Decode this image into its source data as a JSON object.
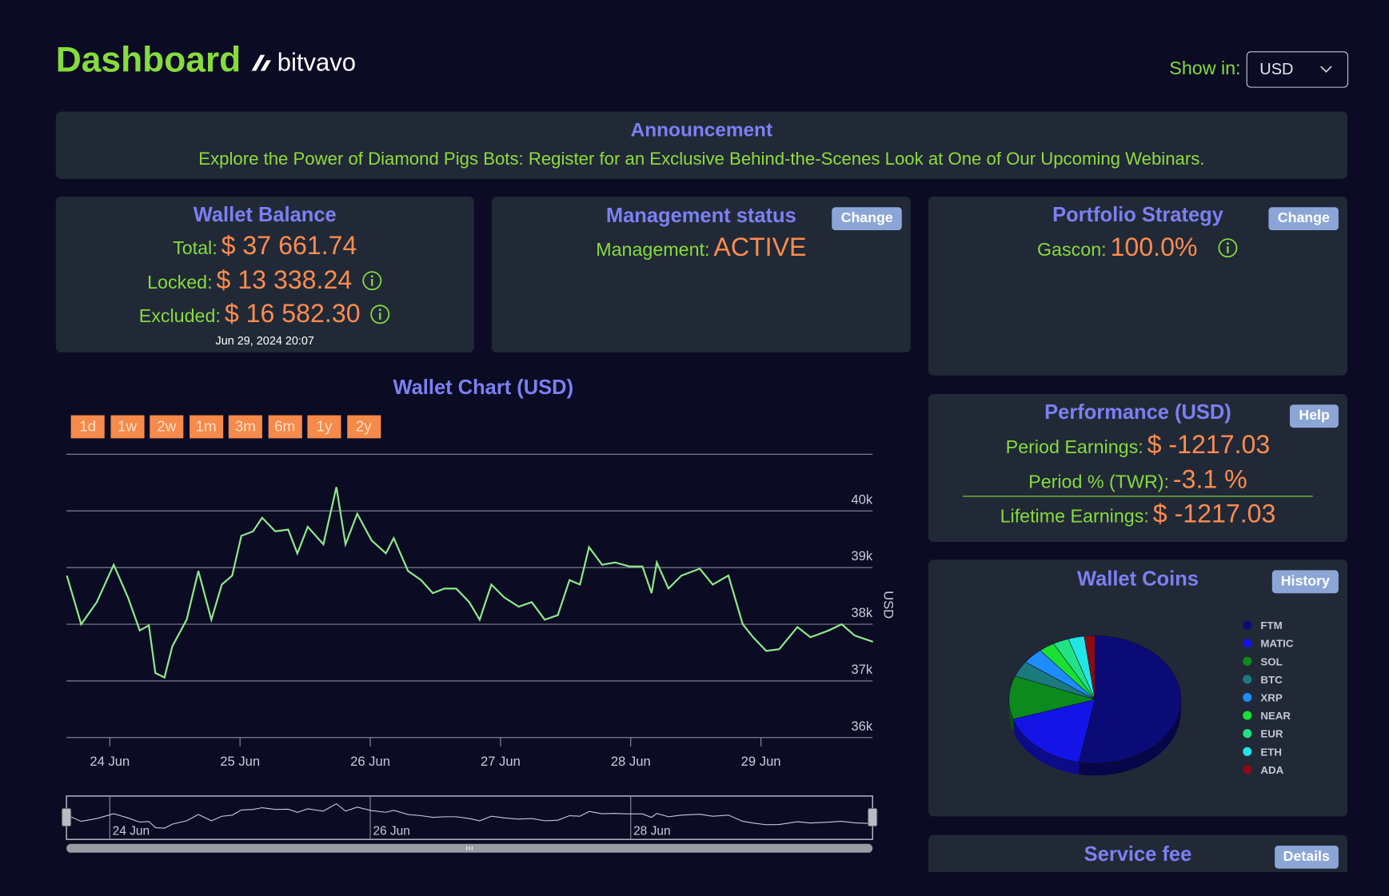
{
  "header": {
    "title": "Dashboard",
    "brand": "bitvavo",
    "show_in_label": "Show in:",
    "currency": "USD"
  },
  "announcement": {
    "title": "Announcement",
    "text": "Explore the Power of Diamond Pigs Bots: Register for an Exclusive Behind-the-Scenes Look at One of Our Upcoming Webinars."
  },
  "wallet_balance": {
    "title": "Wallet Balance",
    "total_label": "Total:",
    "total": "$ 37 661.74",
    "locked_label": "Locked:",
    "locked": "$ 13 338.24",
    "excluded_label": "Excluded:",
    "excluded": "$ 16 582.30",
    "timestamp": "Jun 29, 2024 20:07"
  },
  "management": {
    "title": "Management status",
    "button": "Change",
    "label": "Management:",
    "status": "ACTIVE"
  },
  "strategy": {
    "title": "Portfolio Strategy",
    "button": "Change",
    "label": "Gascon:",
    "value": "100.0%"
  },
  "performance": {
    "title": "Performance (USD)",
    "button": "Help",
    "rows": [
      {
        "label": "Period Earnings:",
        "value": "$ -1217.03"
      },
      {
        "label": "Period % (TWR):",
        "value": "-3.1 %"
      },
      {
        "label": "Lifetime Earnings:",
        "value": "$ -1217.03"
      }
    ]
  },
  "wallet_coins": {
    "button": "History"
  },
  "service_fee": {
    "title": "Service fee",
    "button": "Details"
  },
  "chart_data": [
    {
      "type": "line",
      "title": "Wallet Chart (USD)",
      "y_label": "USD",
      "range_buttons": [
        "1d",
        "1w",
        "2w",
        "1m",
        "3m",
        "6m",
        "1y",
        "2y"
      ],
      "color": "#8ee88a",
      "x": [
        23.67,
        23.78,
        23.9,
        24.03,
        24.14,
        24.23,
        24.3,
        24.35,
        24.42,
        24.48,
        24.59,
        24.68,
        24.78,
        24.86,
        24.94,
        25.01,
        25.1,
        25.17,
        25.27,
        25.37,
        25.44,
        25.52,
        25.64,
        25.74,
        25.81,
        25.9,
        26.01,
        26.12,
        26.18,
        26.29,
        26.39,
        26.48,
        26.57,
        26.66,
        26.76,
        26.84,
        26.93,
        27.03,
        27.14,
        27.24,
        27.34,
        27.44,
        27.53,
        27.61,
        27.68,
        27.78,
        27.88,
        27.99,
        28.09,
        28.16,
        28.2,
        28.29,
        28.39,
        28.53,
        28.63,
        28.75,
        28.86,
        28.94,
        29.04,
        29.14,
        29.28,
        29.38,
        29.52,
        29.62,
        29.72,
        29.86
      ],
      "values": [
        38860,
        38000,
        38390,
        39050,
        38470,
        37890,
        37980,
        37140,
        37060,
        37610,
        38080,
        38940,
        38080,
        38700,
        38860,
        39560,
        39640,
        39880,
        39640,
        39670,
        39250,
        39720,
        39410,
        40420,
        39410,
        39950,
        39480,
        39250,
        39520,
        38940,
        38780,
        38550,
        38630,
        38630,
        38390,
        38080,
        38700,
        38470,
        38310,
        38390,
        38080,
        38160,
        38780,
        38700,
        39360,
        39050,
        39090,
        39020,
        39020,
        38550,
        39090,
        38630,
        38860,
        38980,
        38700,
        38860,
        38000,
        37770,
        37530,
        37560,
        37950,
        37770,
        37890,
        38000,
        37800,
        37690
      ],
      "xlim": [
        23.667,
        29.857
      ],
      "xticks": [
        {
          "value": 24,
          "label": "24 Jun"
        },
        {
          "value": 25,
          "label": "25 Jun"
        },
        {
          "value": 26,
          "label": "26 Jun"
        },
        {
          "value": 27,
          "label": "27 Jun"
        },
        {
          "value": 28,
          "label": "28 Jun"
        },
        {
          "value": 29,
          "label": "29 Jun"
        }
      ],
      "slider_xticks": [
        {
          "value": 24,
          "label": "24 Jun"
        },
        {
          "value": 26,
          "label": "26 Jun"
        },
        {
          "value": 28,
          "label": "28 Jun"
        }
      ],
      "ylim": [
        36000,
        41000
      ],
      "yticks": [
        {
          "value": 36000,
          "label": "36k"
        },
        {
          "value": 37000,
          "label": "37k"
        },
        {
          "value": 38000,
          "label": "38k"
        },
        {
          "value": 39000,
          "label": "39k"
        },
        {
          "value": 40000,
          "label": "40k"
        }
      ],
      "grid": true
    },
    {
      "type": "pie",
      "title": "Wallet Coins",
      "categories": [
        "FTM",
        "MATIC",
        "SOL",
        "BTC",
        "XRP",
        "NEAR",
        "EUR",
        "ETH",
        "ADA"
      ],
      "values": [
        53,
        17,
        11,
        4,
        4,
        3,
        3,
        3,
        2
      ],
      "colors": [
        "#0b0b78",
        "#1414e6",
        "#0c8a1c",
        "#1b7a7e",
        "#1e8cff",
        "#1ae032",
        "#22e284",
        "#22e6e6",
        "#8c0b14"
      ]
    }
  ]
}
